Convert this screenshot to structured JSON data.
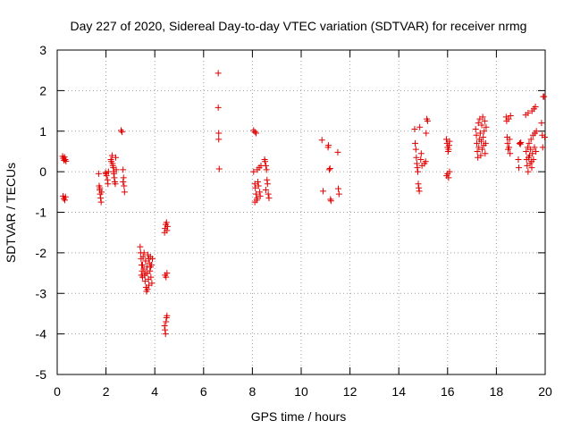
{
  "chart_data": {
    "type": "scatter",
    "title": "Day 227 of 2020, Sidereal Day-to-day VTEC variation (SDTVAR) for receiver nrmg",
    "xlabel": "GPS time / hours",
    "ylabel": "SDTVAR / TECUs",
    "xlim": [
      0,
      20
    ],
    "ylim": [
      -5,
      3
    ],
    "xticks": [
      0,
      2,
      4,
      6,
      8,
      10,
      12,
      14,
      16,
      18,
      20
    ],
    "yticks": [
      -5,
      -4,
      -3,
      -2,
      -1,
      0,
      1,
      2,
      3
    ],
    "grid": true,
    "legend": "none",
    "marker": "+",
    "color": "#e00000",
    "series": [
      {
        "name": "SDTVAR",
        "points": [
          [
            0.22,
            0.38
          ],
          [
            0.25,
            0.33
          ],
          [
            0.28,
            0.28
          ],
          [
            0.3,
            0.36
          ],
          [
            0.33,
            0.3
          ],
          [
            0.36,
            0.26
          ],
          [
            0.24,
            -0.6
          ],
          [
            0.27,
            -0.66
          ],
          [
            0.31,
            -0.7
          ],
          [
            0.34,
            -0.62
          ],
          [
            1.7,
            -0.05
          ],
          [
            1.72,
            -0.35
          ],
          [
            1.74,
            -0.45
          ],
          [
            1.76,
            -0.55
          ],
          [
            1.78,
            -0.65
          ],
          [
            1.8,
            -0.75
          ],
          [
            1.75,
            -0.4
          ],
          [
            1.82,
            -0.5
          ],
          [
            1.98,
            -0.02
          ],
          [
            2.02,
            -0.1
          ],
          [
            2.06,
            -0.2
          ],
          [
            2.08,
            -0.3
          ],
          [
            2.0,
            -0.05
          ],
          [
            2.1,
            0.0
          ],
          [
            2.2,
            0.3
          ],
          [
            2.22,
            0.25
          ],
          [
            2.25,
            0.4
          ],
          [
            2.27,
            0.2
          ],
          [
            2.3,
            0.1
          ],
          [
            2.32,
            -0.05
          ],
          [
            2.34,
            -0.15
          ],
          [
            2.36,
            -0.25
          ],
          [
            2.38,
            -0.3
          ],
          [
            2.4,
            0.35
          ],
          [
            2.42,
            0.05
          ],
          [
            2.28,
            0.15
          ],
          [
            2.33,
            0.0
          ],
          [
            2.62,
            1.02
          ],
          [
            2.66,
            0.98
          ],
          [
            2.7,
            0.05
          ],
          [
            2.72,
            -0.15
          ],
          [
            2.74,
            -0.35
          ],
          [
            2.76,
            -0.5
          ],
          [
            2.7,
            -0.25
          ],
          [
            3.4,
            -1.85
          ],
          [
            3.42,
            -2.0
          ],
          [
            3.44,
            -2.15
          ],
          [
            3.46,
            -2.3
          ],
          [
            3.48,
            -2.45
          ],
          [
            3.5,
            -2.6
          ],
          [
            3.52,
            -2.1
          ],
          [
            3.55,
            -2.4
          ],
          [
            3.58,
            -2.55
          ],
          [
            3.6,
            -2.7
          ],
          [
            3.62,
            -2.2
          ],
          [
            3.64,
            -2.85
          ],
          [
            3.66,
            -2.95
          ],
          [
            3.68,
            -2.35
          ],
          [
            3.7,
            -2.5
          ],
          [
            3.72,
            -2.05
          ],
          [
            3.74,
            -2.65
          ],
          [
            3.76,
            -2.8
          ],
          [
            3.78,
            -2.25
          ],
          [
            3.8,
            -2.45
          ],
          [
            3.82,
            -2.1
          ],
          [
            3.84,
            -2.6
          ],
          [
            3.86,
            -2.3
          ],
          [
            3.88,
            -2.75
          ],
          [
            3.9,
            -2.15
          ],
          [
            3.56,
            -2.0
          ],
          [
            3.63,
            -2.5
          ],
          [
            3.7,
            -2.9
          ],
          [
            3.75,
            -2.15
          ],
          [
            3.83,
            -2.35
          ],
          [
            3.5,
            -2.3
          ],
          [
            3.45,
            -2.55
          ],
          [
            4.4,
            -1.5
          ],
          [
            4.42,
            -1.4
          ],
          [
            4.45,
            -1.3
          ],
          [
            4.48,
            -1.25
          ],
          [
            4.5,
            -1.45
          ],
          [
            4.52,
            -1.35
          ],
          [
            4.42,
            -2.55
          ],
          [
            4.46,
            -2.6
          ],
          [
            4.5,
            -2.5
          ],
          [
            4.4,
            -3.8
          ],
          [
            4.42,
            -3.9
          ],
          [
            4.44,
            -4.0
          ],
          [
            4.46,
            -3.7
          ],
          [
            4.48,
            -3.6
          ],
          [
            4.5,
            -3.55
          ],
          [
            6.6,
            2.43
          ],
          [
            6.6,
            1.58
          ],
          [
            6.62,
            0.95
          ],
          [
            6.62,
            0.8
          ],
          [
            6.64,
            0.07
          ],
          [
            8.05,
            1.02
          ],
          [
            8.1,
            0.98
          ],
          [
            8.15,
            0.95
          ],
          [
            8.05,
            0.0
          ],
          [
            8.1,
            -0.3
          ],
          [
            8.12,
            -0.4
          ],
          [
            8.15,
            -0.55
          ],
          [
            8.18,
            -0.7
          ],
          [
            8.2,
            0.05
          ],
          [
            8.22,
            -0.25
          ],
          [
            8.25,
            -0.35
          ],
          [
            8.28,
            0.1
          ],
          [
            8.3,
            -0.5
          ],
          [
            8.32,
            -0.6
          ],
          [
            8.35,
            0.15
          ],
          [
            8.1,
            -0.75
          ],
          [
            8.2,
            -0.65
          ],
          [
            8.5,
            0.3
          ],
          [
            8.52,
            0.25
          ],
          [
            8.55,
            0.15
          ],
          [
            8.58,
            0.05
          ],
          [
            8.6,
            -0.2
          ],
          [
            8.62,
            -0.3
          ],
          [
            8.65,
            -0.55
          ],
          [
            8.68,
            -0.65
          ],
          [
            8.55,
            -0.45
          ],
          [
            10.85,
            0.78
          ],
          [
            10.9,
            -0.48
          ],
          [
            11.1,
            0.6
          ],
          [
            11.12,
            0.65
          ],
          [
            11.15,
            0.05
          ],
          [
            11.18,
            0.08
          ],
          [
            11.2,
            -0.68
          ],
          [
            11.22,
            -0.72
          ],
          [
            11.5,
            0.48
          ],
          [
            11.52,
            -0.42
          ],
          [
            11.55,
            -0.55
          ],
          [
            14.65,
            1.05
          ],
          [
            14.67,
            0.7
          ],
          [
            14.7,
            0.55
          ],
          [
            14.72,
            0.35
          ],
          [
            14.74,
            0.2
          ],
          [
            14.76,
            0.1
          ],
          [
            14.78,
            0.0
          ],
          [
            14.8,
            -0.3
          ],
          [
            14.82,
            -0.4
          ],
          [
            14.84,
            -0.48
          ],
          [
            14.86,
            1.1
          ],
          [
            14.9,
            0.3
          ],
          [
            14.92,
            0.45
          ],
          [
            14.95,
            0.15
          ],
          [
            15.05,
            0.2
          ],
          [
            15.1,
            0.25
          ],
          [
            15.15,
            1.3
          ],
          [
            15.18,
            1.25
          ],
          [
            15.12,
            0.95
          ],
          [
            15.95,
            0.8
          ],
          [
            15.98,
            0.7
          ],
          [
            16.0,
            0.6
          ],
          [
            16.02,
            0.5
          ],
          [
            16.04,
            0.55
          ],
          [
            16.06,
            0.65
          ],
          [
            16.08,
            0.75
          ],
          [
            15.96,
            -0.1
          ],
          [
            16.0,
            -0.05
          ],
          [
            16.04,
            -0.15
          ],
          [
            16.08,
            0.0
          ],
          [
            17.15,
            1.05
          ],
          [
            17.18,
            0.9
          ],
          [
            17.2,
            0.7
          ],
          [
            17.22,
            0.5
          ],
          [
            17.24,
            0.35
          ],
          [
            17.26,
            1.2
          ],
          [
            17.28,
            0.6
          ],
          [
            17.3,
            0.8
          ],
          [
            17.32,
            1.3
          ],
          [
            17.34,
            0.95
          ],
          [
            17.36,
            0.4
          ],
          [
            17.38,
            0.75
          ],
          [
            17.4,
            1.15
          ],
          [
            17.42,
            0.55
          ],
          [
            17.44,
            1.35
          ],
          [
            17.46,
            0.85
          ],
          [
            17.48,
            0.65
          ],
          [
            17.5,
            1.0
          ],
          [
            17.52,
            1.25
          ],
          [
            17.54,
            0.45
          ],
          [
            17.56,
            0.7
          ],
          [
            17.58,
            1.1
          ],
          [
            18.4,
            1.35
          ],
          [
            18.42,
            1.25
          ],
          [
            18.44,
            0.85
          ],
          [
            18.46,
            0.7
          ],
          [
            18.48,
            0.55
          ],
          [
            18.5,
            1.3
          ],
          [
            18.52,
            0.6
          ],
          [
            18.54,
            0.8
          ],
          [
            18.56,
            0.45
          ],
          [
            18.58,
            1.38
          ],
          [
            18.9,
            0.3
          ],
          [
            18.92,
            0.1
          ],
          [
            18.95,
            0.7
          ],
          [
            18.98,
            0.68
          ],
          [
            19.0,
            0.72
          ],
          [
            19.2,
            1.4
          ],
          [
            19.22,
            0.5
          ],
          [
            19.24,
            0.3
          ],
          [
            19.26,
            0.15
          ],
          [
            19.28,
            0.6
          ],
          [
            19.3,
            1.45
          ],
          [
            19.32,
            0.35
          ],
          [
            19.34,
            0.7
          ],
          [
            19.36,
            0.4
          ],
          [
            19.38,
            0.2
          ],
          [
            19.4,
            0.55
          ],
          [
            19.42,
            0.8
          ],
          [
            19.44,
            0.25
          ],
          [
            19.46,
            1.5
          ],
          [
            19.48,
            0.45
          ],
          [
            19.5,
            0.9
          ],
          [
            19.52,
            0.3
          ],
          [
            19.54,
            1.55
          ],
          [
            19.56,
            0.6
          ],
          [
            19.58,
            0.95
          ],
          [
            19.6,
            1.6
          ],
          [
            19.62,
            0.5
          ],
          [
            19.64,
            1.0
          ],
          [
            19.3,
            0.0
          ],
          [
            19.45,
            0.1
          ],
          [
            19.85,
            1.2
          ],
          [
            19.88,
            0.9
          ],
          [
            19.9,
            0.6
          ],
          [
            19.92,
            1.85
          ],
          [
            19.95,
            1.85
          ],
          [
            19.98,
            0.85
          ]
        ]
      }
    ]
  }
}
